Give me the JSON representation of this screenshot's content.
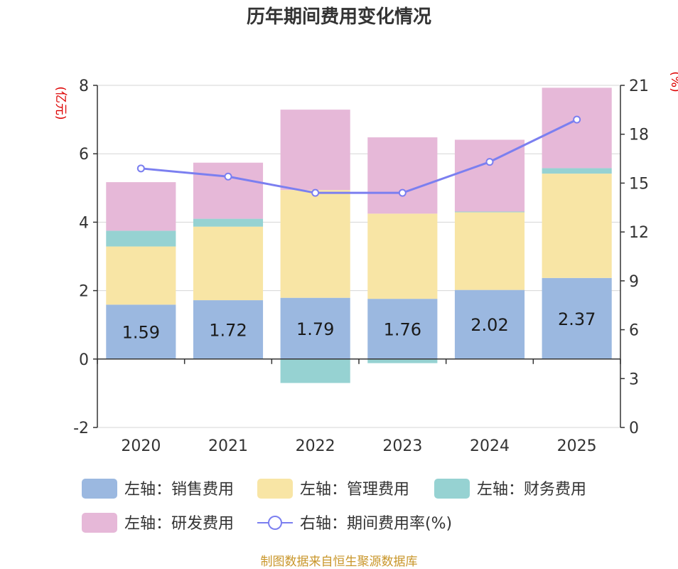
{
  "chart_data": {
    "type": "bar",
    "stacked": true,
    "title": "历年期间费用变化情况",
    "categories": [
      "2020",
      "2021",
      "2022",
      "2023",
      "2024",
      "2025"
    ],
    "left_axis": {
      "unit": "(亿元)",
      "min": -2,
      "max": 8,
      "ticks": [
        -2,
        0,
        2,
        4,
        6,
        8
      ]
    },
    "right_axis": {
      "unit": "(%)",
      "min": 0,
      "max": 21,
      "ticks": [
        0,
        3,
        6,
        9,
        12,
        15,
        18,
        21
      ]
    },
    "series": [
      {
        "name": "左轴：销售费用",
        "color": "#9bb8e0",
        "values": [
          1.59,
          1.72,
          1.79,
          1.76,
          2.02,
          2.37
        ],
        "show_labels": true
      },
      {
        "name": "左轴：管理费用",
        "color": "#f8e5a5",
        "values": [
          1.7,
          2.15,
          3.15,
          2.49,
          2.27,
          3.05
        ]
      },
      {
        "name": "左轴：财务费用",
        "color": "#96d2d2",
        "values": [
          0.46,
          0.23,
          -0.7,
          -0.12,
          0.02,
          0.16
        ]
      },
      {
        "name": "左轴：研发费用",
        "color": "#e6b8d8",
        "values": [
          1.42,
          1.64,
          2.35,
          2.23,
          2.1,
          2.35
        ]
      }
    ],
    "line_series": {
      "name": "右轴：期间费用率(%)",
      "color": "#7b7ff0",
      "values": [
        15.9,
        15.4,
        14.4,
        14.4,
        16.3,
        18.9
      ]
    },
    "source": "制图数据来自恒生聚源数据库"
  }
}
